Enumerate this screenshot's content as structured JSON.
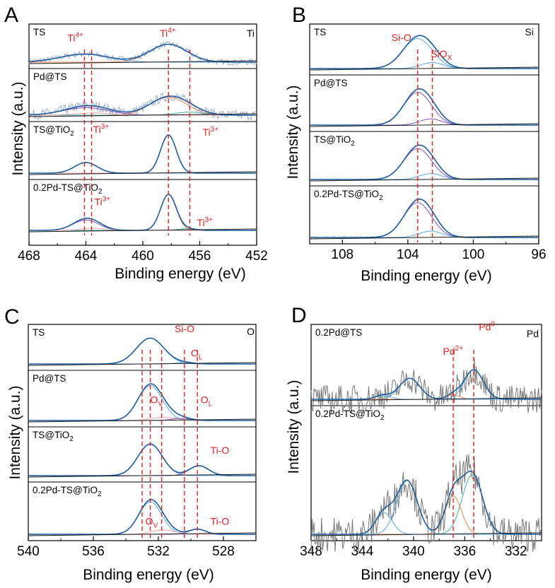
{
  "figure": {
    "colors": {
      "raw": "#9aaed0",
      "raw_pd": "#777777",
      "envelope": "#1f5f9e",
      "fit": "#1a1a1a",
      "baseline": "#1a1a1a",
      "comp_blue": "#5aa8e8",
      "comp_orange": "#f08050",
      "comp_teal": "#3ab0a0",
      "comp_purple": "#8050c0",
      "comp_pink": "#e8a0a8",
      "marker": "#e02020"
    }
  },
  "chart_data": [
    {
      "id": "A",
      "type": "line",
      "panel_label": "A",
      "element": "Ti",
      "xlabel": "Binding energy (eV)",
      "ylabel": "Intensity (a.u.)",
      "xlim": [
        468,
        452
      ],
      "x_reversed": true,
      "xticks": [
        468,
        464,
        460,
        456,
        452
      ],
      "grid": false,
      "markers": [
        464.1,
        463.6,
        458.2,
        456.7
      ],
      "samples": [
        {
          "name": "TS",
          "noise": 0.1,
          "components": [
            {
              "center": 458.2,
              "height": 0.62,
              "width": 1.3,
              "color": "comp_orange"
            },
            {
              "center": 464.1,
              "height": 0.28,
              "width": 1.7,
              "color": "comp_blue"
            }
          ]
        },
        {
          "name": "Pd@TS",
          "noise": 0.13,
          "components": [
            {
              "center": 458.2,
              "height": 0.48,
              "width": 1.3,
              "color": "comp_orange"
            },
            {
              "center": 456.7,
              "height": 0.08,
              "width": 1.0,
              "color": "comp_teal"
            },
            {
              "center": 464.0,
              "height": 0.2,
              "width": 1.6,
              "color": "comp_purple"
            },
            {
              "center": 463.5,
              "height": 0.06,
              "width": 1.2,
              "color": "comp_pink"
            }
          ]
        },
        {
          "name": "TS@TiO",
          "name_sub": "2",
          "noise": 0.01,
          "components": [
            {
              "center": 458.2,
              "height": 0.9,
              "width": 0.55,
              "color": "comp_pink"
            },
            {
              "center": 464.0,
              "height": 0.25,
              "width": 0.8,
              "color": "comp_blue"
            }
          ]
        },
        {
          "name": "0.2Pd-TS@TiO",
          "name_sub": "2",
          "noise": 0.012,
          "components": [
            {
              "center": 458.2,
              "height": 0.86,
              "width": 0.55,
              "color": "comp_orange"
            },
            {
              "center": 456.9,
              "height": 0.04,
              "width": 0.6,
              "color": "comp_teal"
            },
            {
              "center": 464.0,
              "height": 0.25,
              "width": 0.9,
              "color": "comp_purple"
            },
            {
              "center": 463.5,
              "height": 0.05,
              "width": 0.8,
              "color": "comp_pink"
            }
          ]
        }
      ],
      "annotations": [
        {
          "text": "Ti",
          "sup": "4+",
          "x": 465.3,
          "sample": 0,
          "y": 0.72
        },
        {
          "text": "Ti",
          "sup": "4+",
          "x": 458.8,
          "sample": 0,
          "y": 0.88
        },
        {
          "text": "Ti",
          "sup": "3+",
          "x": 463.5,
          "sample": 2,
          "y": 0.95
        },
        {
          "text": "Ti",
          "sup": "3+",
          "x": 455.8,
          "sample": 2,
          "y": 0.88
        },
        {
          "text": "Ti",
          "sup": "3+",
          "x": 463.4,
          "sample": 3,
          "y": 0.6
        },
        {
          "text": "Ti",
          "sup": "3+",
          "x": 456.2,
          "sample": 3,
          "y": 0.1
        }
      ]
    },
    {
      "id": "B",
      "type": "line",
      "panel_label": "B",
      "element": "Si",
      "xlabel": "Binding energy (eV)",
      "ylabel": "Intensity (a.u.)",
      "xlim": [
        110,
        96
      ],
      "x_reversed": true,
      "xticks": [
        108,
        104,
        100,
        96
      ],
      "grid": false,
      "markers": [
        103.4,
        102.5
      ],
      "samples": [
        {
          "name": "TS",
          "noise": 0.02,
          "components": [
            {
              "center": 103.4,
              "height": 0.85,
              "width": 0.9,
              "color": "comp_blue"
            },
            {
              "center": 102.5,
              "height": 0.17,
              "width": 0.7,
              "color": "comp_blue"
            }
          ]
        },
        {
          "name": "Pd@TS",
          "noise": 0.015,
          "components": [
            {
              "center": 103.4,
              "height": 0.8,
              "width": 0.85,
              "color": "comp_purple"
            },
            {
              "center": 102.6,
              "height": 0.15,
              "width": 0.7,
              "color": "comp_purple"
            }
          ]
        },
        {
          "name": "TS@TiO",
          "name_sub": "2",
          "noise": 0.015,
          "components": [
            {
              "center": 103.4,
              "height": 0.8,
              "width": 0.85,
              "color": "comp_purple"
            },
            {
              "center": 102.6,
              "height": 0.15,
              "width": 0.7,
              "color": "comp_blue"
            }
          ]
        },
        {
          "name": "0.2Pd-TS@TiO",
          "name_sub": "2",
          "noise": 0.02,
          "components": [
            {
              "center": 103.4,
              "height": 0.82,
              "width": 0.85,
              "color": "comp_purple"
            },
            {
              "center": 102.6,
              "height": 0.15,
              "width": 0.7,
              "color": "comp_blue"
            }
          ]
        }
      ],
      "annotations": [
        {
          "text": "Si-O",
          "x": 105.0,
          "sample": 0,
          "y": 0.78
        },
        {
          "text": "SiO",
          "sub": "X",
          "x": 102.6,
          "sample": 0,
          "y": 0.32
        }
      ]
    },
    {
      "id": "C",
      "type": "line",
      "panel_label": "C",
      "element": "O",
      "xlabel": "Binding energy (eV)",
      "ylabel": "Intensity (a.u.)",
      "xlim": [
        540,
        526
      ],
      "x_reversed": true,
      "xticks": [
        540,
        536,
        532,
        528
      ],
      "grid": false,
      "markers": [
        532.5,
        530.4,
        531.8,
        533.0,
        529.6
      ],
      "samples": [
        {
          "name": "TS",
          "noise": 0.012,
          "components": [
            {
              "center": 532.5,
              "height": 0.85,
              "width": 0.85,
              "color": "comp_blue"
            },
            {
              "center": 530.4,
              "height": 0.04,
              "width": 0.6,
              "color": "comp_blue"
            }
          ]
        },
        {
          "name": "Pd@TS",
          "noise": 0.012,
          "components": [
            {
              "center": 532.5,
              "height": 0.85,
              "width": 0.75,
              "color": "comp_blue"
            },
            {
              "center": 531.6,
              "height": 0.08,
              "width": 0.8,
              "color": "comp_pink"
            },
            {
              "center": 530.6,
              "height": 0.05,
              "width": 0.6,
              "color": "comp_purple"
            }
          ]
        },
        {
          "name": "TS@TiO",
          "name_sub": "2",
          "noise": 0.015,
          "components": [
            {
              "center": 532.5,
              "height": 0.8,
              "width": 0.75,
              "color": "comp_blue"
            },
            {
              "center": 529.5,
              "height": 0.25,
              "width": 0.6,
              "color": "comp_purple"
            }
          ]
        },
        {
          "name": "0.2Pd-TS@TiO",
          "name_sub": "2",
          "noise": 0.015,
          "components": [
            {
              "center": 532.5,
              "height": 0.75,
              "width": 0.7,
              "color": "comp_blue"
            },
            {
              "center": 531.7,
              "height": 0.1,
              "width": 0.7,
              "color": "comp_pink"
            },
            {
              "center": 529.6,
              "height": 0.12,
              "width": 0.5,
              "color": "comp_purple"
            }
          ]
        }
      ],
      "annotations": [
        {
          "text": "Si-O",
          "x": 531.0,
          "sample": 0,
          "y": 1.05
        },
        {
          "text": "O",
          "sub": "L",
          "x": 530.0,
          "sample": 0,
          "y": 0.25
        },
        {
          "text": "O",
          "sub": "V",
          "x": 532.5,
          "sample": 1,
          "y": 0.42
        },
        {
          "text": "O",
          "sub": "L",
          "x": 529.4,
          "sample": 1,
          "y": 0.42
        },
        {
          "text": "Ti-O",
          "x": 528.8,
          "sample": 2,
          "y": 0.55
        },
        {
          "text": "O",
          "sub": "V",
          "x": 532.8,
          "sample": 3,
          "y": 0.22
        },
        {
          "text": "Ti-O",
          "x": 528.8,
          "sample": 3,
          "y": 0.22
        }
      ]
    },
    {
      "id": "D",
      "type": "line",
      "panel_label": "D",
      "element": "Pd",
      "xlabel": "Binding energy (eV)",
      "ylabel": "Intensity (a.u.)",
      "xlim": [
        348,
        330
      ],
      "x_reversed": true,
      "xticks": [
        348,
        344,
        340,
        336,
        332
      ],
      "grid": false,
      "markers": [
        336.9,
        335.3
      ],
      "samples": [
        {
          "name": "0.2Pd@TS",
          "noise": 0.22,
          "components": [
            {
              "center": 335.3,
              "height": 0.45,
              "width": 0.75,
              "color": "comp_blue"
            },
            {
              "center": 340.3,
              "height": 0.32,
              "width": 0.8,
              "color": "comp_blue"
            },
            {
              "center": 336.9,
              "height": 0.07,
              "width": 0.5,
              "color": "comp_orange"
            },
            {
              "center": 342.4,
              "height": 0.06,
              "width": 0.6,
              "color": "comp_blue"
            }
          ]
        },
        {
          "name": "0.2Pd-TS@TiO",
          "name_sub": "2",
          "noise": 0.15,
          "components": [
            {
              "center": 335.4,
              "height": 0.5,
              "width": 0.8,
              "color": "comp_teal"
            },
            {
              "center": 336.9,
              "height": 0.32,
              "width": 0.65,
              "color": "comp_orange"
            },
            {
              "center": 340.5,
              "height": 0.45,
              "width": 0.8,
              "color": "comp_blue"
            },
            {
              "center": 342.3,
              "height": 0.18,
              "width": 0.65,
              "color": "comp_blue"
            }
          ]
        }
      ],
      "annotations": [
        {
          "text": "Pd",
          "sup": "2+",
          "x": 337.7,
          "sample": 0,
          "y": 0.68
        },
        {
          "text": "Pd",
          "sup": "0",
          "x": 334.9,
          "sample": 0,
          "y": 1.05
        }
      ]
    }
  ]
}
